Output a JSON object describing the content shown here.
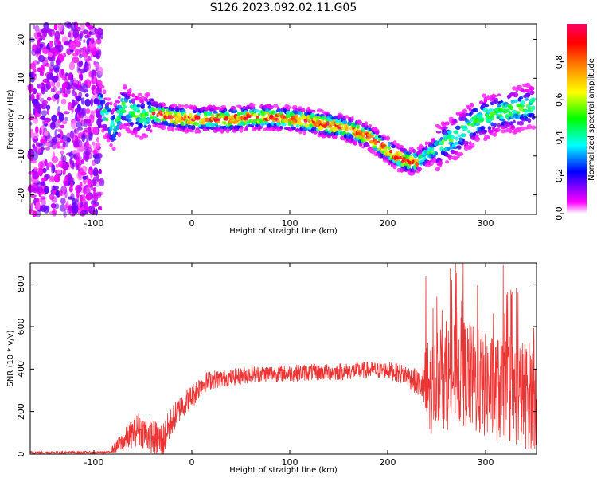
{
  "chart_data": [
    {
      "type": "heatmap",
      "title": "S126.2023.092.02.11.G05",
      "xlabel": "Height of straight line (km)",
      "ylabel": "Frequency (Hz)",
      "xlim": [
        -165,
        352
      ],
      "ylim": [
        -25,
        24
      ],
      "xticks": [
        -100,
        0,
        100,
        200,
        300
      ],
      "yticks": [
        -20,
        -10,
        0,
        10,
        20
      ],
      "colorbar": {
        "label": "Normalized spectral amplitude",
        "range": [
          0,
          1
        ],
        "ticks": [
          "0.0",
          "0.2",
          "0.4",
          "0.6",
          "0.8"
        ],
        "colormap": [
          "#ffffff",
          "#ff00ff",
          "#8000ff",
          "#0000ff",
          "#00ffff",
          "#00ff00",
          "#ffff00",
          "#ff8000",
          "#ff0000",
          "#ff0066"
        ]
      },
      "ridge": {
        "x": [
          -95,
          -80,
          -70,
          -60,
          -50,
          -40,
          -20,
          0,
          20,
          40,
          60,
          80,
          100,
          120,
          140,
          160,
          180,
          200,
          215,
          230,
          250,
          270,
          290,
          310,
          330,
          352
        ],
        "y": [
          4,
          -3,
          3,
          1,
          0,
          1,
          0,
          -0.5,
          -0.5,
          -0.5,
          0,
          0,
          -0.5,
          -1,
          -2,
          -3,
          -5,
          -8.5,
          -11,
          -11.5,
          -8,
          -5,
          -1,
          1,
          2,
          3
        ]
      }
    },
    {
      "type": "line",
      "xlabel": "Height of straight line (km)",
      "ylabel": "SNR (10 * v/v)",
      "xlim": [
        -165,
        352
      ],
      "ylim": [
        0,
        900
      ],
      "xticks": [
        -100,
        0,
        100,
        200,
        300
      ],
      "yticks": [
        0,
        200,
        400,
        600,
        800
      ],
      "series": [
        {
          "name": "SNR",
          "color": "#ee3333",
          "envelope": {
            "x": [
              -165,
              -85,
              -70,
              -55,
              -40,
              -30,
              -20,
              -10,
              0,
              10,
              20,
              40,
              60,
              80,
              100,
              120,
              140,
              160,
              180,
              200,
              220,
              235,
              240,
              250,
              260,
              270,
              280,
              290,
              300,
              320,
              340,
              352
            ],
            "mean": [
              8,
              8,
              60,
              120,
              80,
              60,
              160,
              230,
              270,
              330,
              350,
              360,
              375,
              380,
              380,
              385,
              385,
              390,
              395,
              395,
              370,
              320,
              300,
              340,
              360,
              390,
              380,
              340,
              320,
              300,
              280,
              280
            ],
            "spread": [
              6,
              6,
              50,
              80,
              80,
              90,
              70,
              60,
              60,
              50,
              45,
              40,
              40,
              40,
              40,
              40,
              40,
              40,
              40,
              40,
              50,
              70,
              250,
              200,
              250,
              260,
              260,
              260,
              250,
              250,
              260,
              260
            ]
          },
          "peaks": [
            {
              "x": 239,
              "y": 840
            },
            {
              "x": 270,
              "y": 850
            },
            {
              "x": 277,
              "y": 910
            },
            {
              "x": 318,
              "y": 890
            },
            {
              "x": 333,
              "y": 760
            }
          ]
        }
      ]
    }
  ]
}
